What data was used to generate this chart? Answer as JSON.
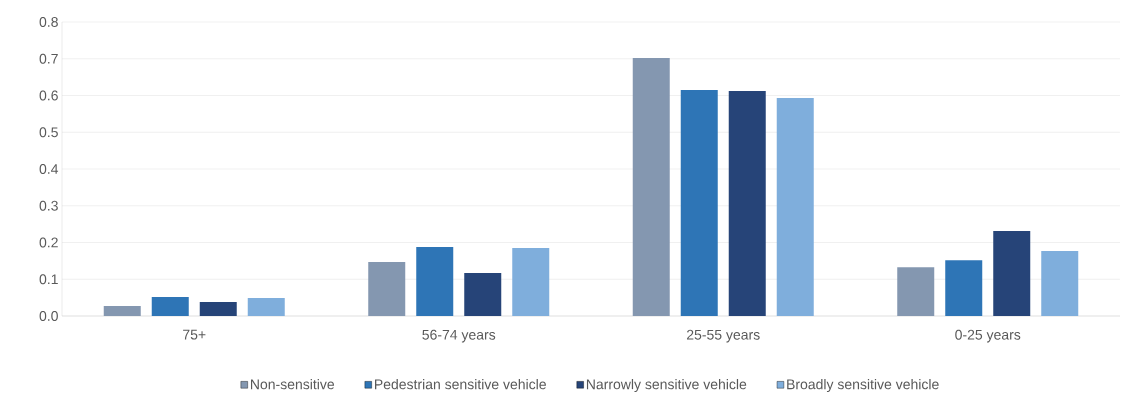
{
  "chart_data": {
    "type": "bar",
    "categories": [
      "75+",
      "56-74 years",
      "25-55 years",
      "0-25 years"
    ],
    "series": [
      {
        "name": "Non-sensitive",
        "color": "#8497b0",
        "values": [
          0.027,
          0.147,
          0.702,
          0.133
        ]
      },
      {
        "name": "Pedestrian sensitive vehicle",
        "color": "#2e75b6",
        "values": [
          0.052,
          0.188,
          0.615,
          0.152
        ]
      },
      {
        "name": "Narrowly sensitive vehicle",
        "color": "#264478",
        "values": [
          0.038,
          0.117,
          0.612,
          0.231
        ]
      },
      {
        "name": "Broadly sensitive vehicle",
        "color": "#7faedc",
        "values": [
          0.049,
          0.185,
          0.593,
          0.177
        ]
      }
    ],
    "ylim": [
      0,
      0.8
    ],
    "yticks": [
      {
        "value": 0,
        "label": "0.0"
      },
      0.1,
      0.2,
      0.3,
      0.4,
      0.5,
      0.6,
      0.7,
      0.8
    ],
    "grid": "y",
    "legend": "bottom"
  }
}
